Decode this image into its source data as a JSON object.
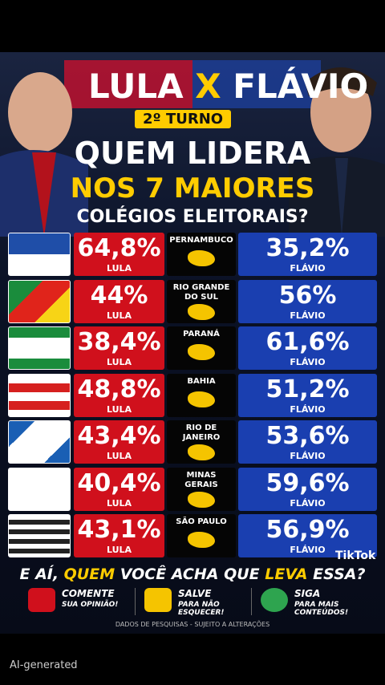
{
  "header": {
    "name_left": "LULA",
    "versus": "X",
    "name_right": "FLÁVIO",
    "badge": "2º TURNO",
    "headline_1": "QUEM LIDERA",
    "headline_2": "NOS 7 MAIORES",
    "headline_3": "COLÉGIOS ELEITORAIS?"
  },
  "table": {
    "rows": [
      {
        "state": [
          "PERNAMBUCO"
        ],
        "lula": "64,8%",
        "lula_label": "LULA",
        "flavio": "35,2%",
        "flavio_label": "FLÁVIO"
      },
      {
        "state": [
          "RIO GRANDE",
          "DO SUL"
        ],
        "lula": "44%",
        "lula_label": "LULA",
        "flavio": "56%",
        "flavio_label": "FLÁVIO"
      },
      {
        "state": [
          "PARANÁ"
        ],
        "lula": "38,4%",
        "lula_label": "LULA",
        "flavio": "61,6%",
        "flavio_label": "FLÁVIO"
      },
      {
        "state": [
          "BAHIA"
        ],
        "lula": "48,8%",
        "lula_label": "LULA",
        "flavio": "51,2%",
        "flavio_label": "FLÁVIO"
      },
      {
        "state": [
          "RIO DE",
          "JANEIRO"
        ],
        "lula": "43,4%",
        "lula_label": "LULA",
        "flavio": "53,6%",
        "flavio_label": "FLÁVIO"
      },
      {
        "state": [
          "MINAS",
          "GERAIS"
        ],
        "lula": "40,4%",
        "lula_label": "LULA",
        "flavio": "59,6%",
        "flavio_label": "FLÁVIO"
      },
      {
        "state": [
          "SÃO PAULO"
        ],
        "lula": "43,1%",
        "lula_label": "LULA",
        "flavio": "56,9%",
        "flavio_label": "FLÁVIO"
      }
    ]
  },
  "footer": {
    "question": [
      "E AÍ, ",
      "QUEM",
      " VOCÊ ACHA QUE ",
      "LEVA",
      " ESSA?"
    ],
    "actions": [
      {
        "title": "COMENTE",
        "subtitle": "SUA OPINIÃO!"
      },
      {
        "title": "SALVE",
        "subtitle": "PARA NÃO ESQUECER!"
      },
      {
        "title": "SIGA",
        "subtitle": "PARA MAIS CONTEÚDOS!"
      }
    ],
    "disclaimer": "DADOS DE PESQUISAS - SUJEITO A ALTERAÇÕES"
  },
  "watermark": "TikTok",
  "ai_label": "AI-generated"
}
